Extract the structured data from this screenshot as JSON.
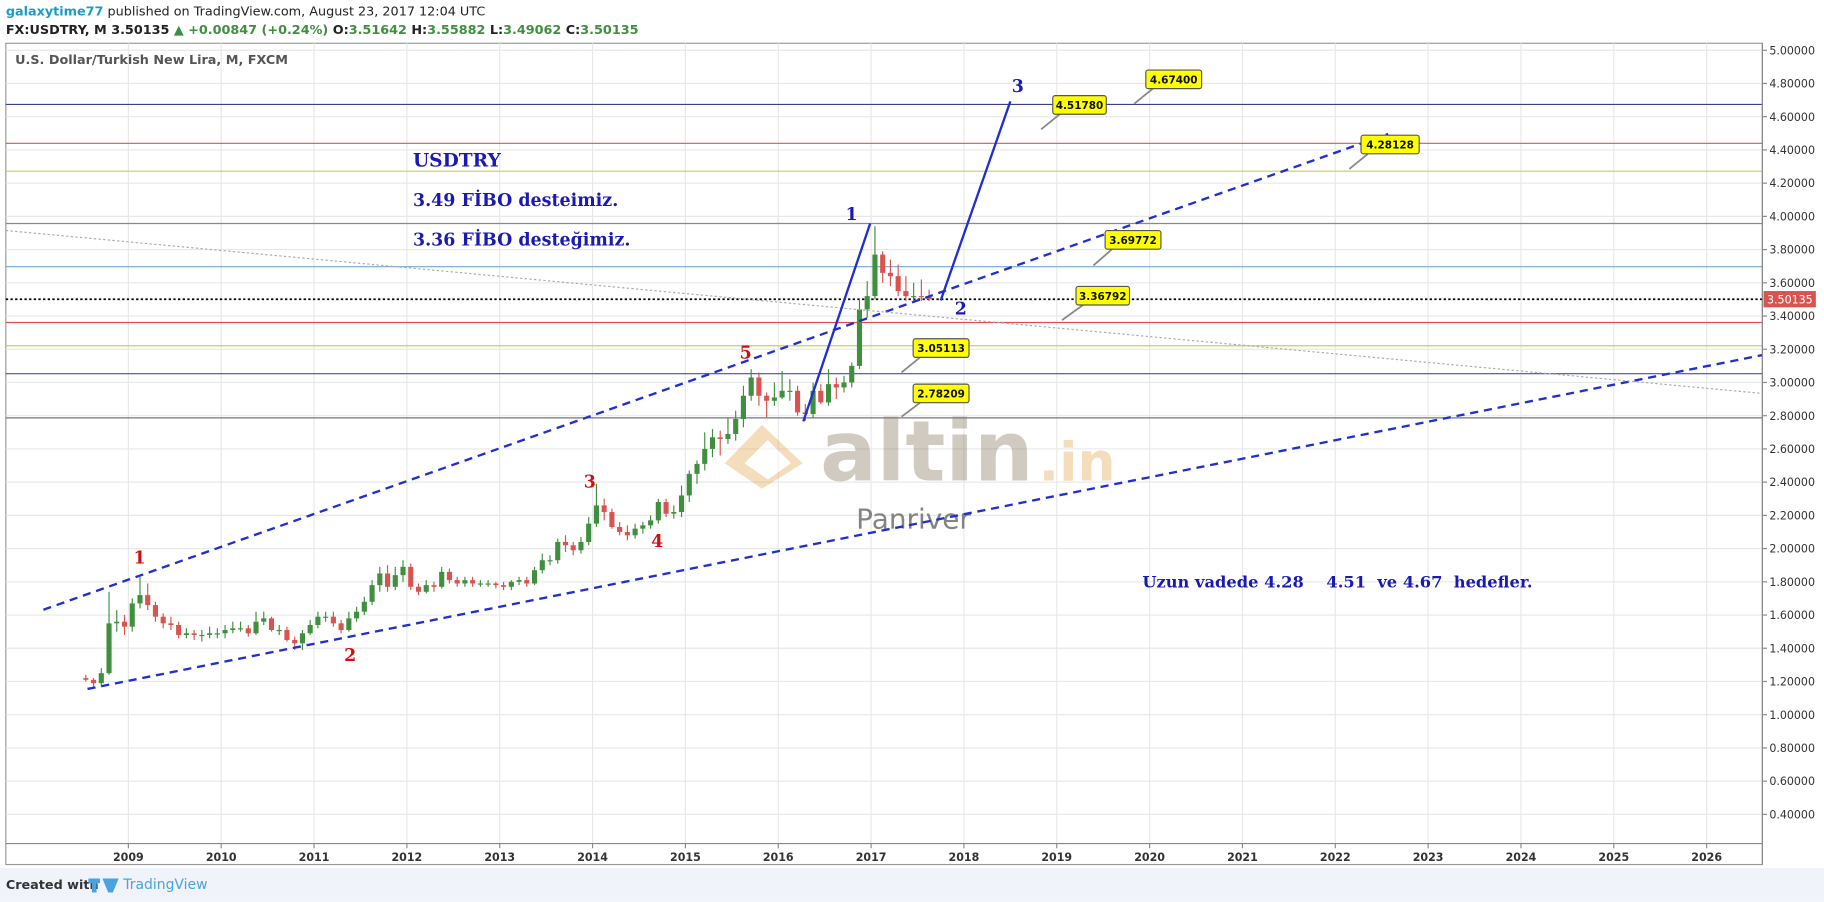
{
  "header": {
    "user": "galaxytime77",
    "published": " published on TradingView.com, August 23, 2017 12:04 UTC",
    "symbol": "FX:USDTRY, M",
    "price": "3.50135",
    "change": "▲ +0.00847 (+0.24%)",
    "ohlc": [
      {
        "label": "O:",
        "value": "3.51642"
      },
      {
        "label": "H:",
        "value": "3.55882"
      },
      {
        "label": "L:",
        "value": "3.49062"
      },
      {
        "label": "C:",
        "value": "3.50135"
      }
    ]
  },
  "footer": {
    "created": "Created with",
    "brand": "TradingView"
  },
  "chart_data": {
    "type": "candlestick",
    "title": "U.S. Dollar/Turkish New Lira, M, FXCM",
    "x": [
      "2008-07",
      "2008-08",
      "2008-09",
      "2008-10",
      "2008-11",
      "2008-12",
      "2009-01",
      "2009-02",
      "2009-03",
      "2009-04",
      "2009-05",
      "2009-06",
      "2009-07",
      "2009-08",
      "2009-09",
      "2009-10",
      "2009-11",
      "2009-12",
      "2010-01",
      "2010-02",
      "2010-03",
      "2010-04",
      "2010-05",
      "2010-06",
      "2010-07",
      "2010-08",
      "2010-09",
      "2010-10",
      "2010-11",
      "2010-12",
      "2011-01",
      "2011-02",
      "2011-03",
      "2011-04",
      "2011-05",
      "2011-06",
      "2011-07",
      "2011-08",
      "2011-09",
      "2011-10",
      "2011-11",
      "2011-12",
      "2012-01",
      "2012-02",
      "2012-03",
      "2012-04",
      "2012-05",
      "2012-06",
      "2012-07",
      "2012-08",
      "2012-09",
      "2012-10",
      "2012-11",
      "2012-12",
      "2013-01",
      "2013-02",
      "2013-03",
      "2013-04",
      "2013-05",
      "2013-06",
      "2013-07",
      "2013-08",
      "2013-09",
      "2013-10",
      "2013-11",
      "2013-12",
      "2014-01",
      "2014-02",
      "2014-03",
      "2014-04",
      "2014-05",
      "2014-06",
      "2014-07",
      "2014-08",
      "2014-09",
      "2014-10",
      "2014-11",
      "2014-12",
      "2015-01",
      "2015-02",
      "2015-03",
      "2015-04",
      "2015-05",
      "2015-06",
      "2015-07",
      "2015-08",
      "2015-09",
      "2015-10",
      "2015-11",
      "2015-12",
      "2016-01",
      "2016-02",
      "2016-03",
      "2016-04",
      "2016-05",
      "2016-06",
      "2016-07",
      "2016-08",
      "2016-09",
      "2016-10",
      "2016-11",
      "2016-12",
      "2017-01",
      "2017-02",
      "2017-03",
      "2017-04",
      "2017-05",
      "2017-06",
      "2017-07",
      "2017-08"
    ],
    "open": [
      1.22,
      1.21,
      1.19,
      1.25,
      1.55,
      1.56,
      1.53,
      1.67,
      1.72,
      1.66,
      1.59,
      1.55,
      1.54,
      1.48,
      1.49,
      1.48,
      1.48,
      1.49,
      1.49,
      1.51,
      1.52,
      1.52,
      1.49,
      1.56,
      1.58,
      1.51,
      1.51,
      1.45,
      1.43,
      1.49,
      1.54,
      1.59,
      1.59,
      1.55,
      1.51,
      1.58,
      1.62,
      1.68,
      1.78,
      1.85,
      1.77,
      1.84,
      1.89,
      1.77,
      1.74,
      1.78,
      1.77,
      1.86,
      1.81,
      1.79,
      1.81,
      1.79,
      1.79,
      1.79,
      1.78,
      1.77,
      1.8,
      1.81,
      1.79,
      1.87,
      1.93,
      1.93,
      2.04,
      2.02,
      1.99,
      2.04,
      2.15,
      2.26,
      2.22,
      2.13,
      2.1,
      2.08,
      2.12,
      2.14,
      2.17,
      2.28,
      2.21,
      2.22,
      2.32,
      2.45,
      2.51,
      2.6,
      2.67,
      2.66,
      2.69,
      2.78,
      2.92,
      3.03,
      2.92,
      2.89,
      2.91,
      2.95,
      2.95,
      2.82,
      2.81,
      2.95,
      2.88,
      2.99,
      2.97,
      3.0,
      3.1,
      3.44,
      3.52,
      3.77,
      3.66,
      3.64,
      3.55,
      3.52,
      3.52,
      3.51642
    ],
    "high": [
      1.24,
      1.22,
      1.28,
      1.74,
      1.63,
      1.6,
      1.7,
      1.83,
      1.79,
      1.68,
      1.61,
      1.59,
      1.56,
      1.52,
      1.51,
      1.51,
      1.53,
      1.52,
      1.54,
      1.56,
      1.56,
      1.54,
      1.62,
      1.62,
      1.59,
      1.54,
      1.53,
      1.47,
      1.51,
      1.57,
      1.62,
      1.62,
      1.62,
      1.57,
      1.62,
      1.65,
      1.71,
      1.81,
      1.89,
      1.9,
      1.89,
      1.93,
      1.91,
      1.79,
      1.81,
      1.8,
      1.89,
      1.88,
      1.83,
      1.83,
      1.83,
      1.81,
      1.81,
      1.8,
      1.8,
      1.81,
      1.83,
      1.83,
      1.89,
      1.97,
      1.96,
      2.06,
      2.08,
      2.04,
      2.07,
      2.19,
      2.39,
      2.3,
      2.24,
      2.16,
      2.14,
      2.15,
      2.16,
      2.2,
      2.3,
      2.3,
      2.26,
      2.38,
      2.47,
      2.53,
      2.7,
      2.72,
      2.71,
      2.79,
      2.83,
      2.98,
      3.08,
      3.06,
      2.94,
      3.0,
      3.07,
      3.02,
      2.98,
      2.87,
      3.0,
      2.99,
      3.08,
      3.03,
      3.04,
      3.12,
      3.5,
      3.61,
      3.94,
      3.79,
      3.74,
      3.71,
      3.64,
      3.6,
      3.62,
      3.55882
    ],
    "low": [
      1.2,
      1.16,
      1.17,
      1.24,
      1.5,
      1.48,
      1.5,
      1.64,
      1.63,
      1.56,
      1.52,
      1.51,
      1.46,
      1.46,
      1.45,
      1.44,
      1.46,
      1.46,
      1.46,
      1.49,
      1.5,
      1.47,
      1.48,
      1.54,
      1.5,
      1.48,
      1.44,
      1.39,
      1.39,
      1.48,
      1.52,
      1.56,
      1.53,
      1.49,
      1.5,
      1.56,
      1.6,
      1.66,
      1.74,
      1.74,
      1.75,
      1.8,
      1.75,
      1.72,
      1.73,
      1.74,
      1.76,
      1.79,
      1.77,
      1.77,
      1.77,
      1.77,
      1.77,
      1.76,
      1.75,
      1.75,
      1.78,
      1.77,
      1.78,
      1.85,
      1.9,
      1.91,
      1.98,
      1.96,
      1.97,
      2.02,
      2.13,
      2.17,
      2.12,
      2.08,
      2.05,
      2.06,
      2.09,
      2.12,
      2.15,
      2.19,
      2.18,
      2.19,
      2.28,
      2.39,
      2.47,
      2.55,
      2.56,
      2.63,
      2.65,
      2.73,
      2.89,
      2.86,
      2.79,
      2.86,
      2.9,
      2.89,
      2.8,
      2.77,
      2.79,
      2.87,
      2.86,
      2.9,
      2.94,
      2.97,
      3.08,
      3.39,
      3.5,
      3.6,
      3.58,
      3.52,
      3.49,
      3.48,
      3.49,
      3.49062
    ],
    "close": [
      1.21,
      1.19,
      1.25,
      1.55,
      1.56,
      1.53,
      1.67,
      1.72,
      1.66,
      1.59,
      1.55,
      1.54,
      1.48,
      1.49,
      1.48,
      1.48,
      1.49,
      1.49,
      1.51,
      1.52,
      1.52,
      1.49,
      1.56,
      1.58,
      1.51,
      1.51,
      1.45,
      1.43,
      1.49,
      1.54,
      1.59,
      1.59,
      1.55,
      1.51,
      1.58,
      1.62,
      1.68,
      1.78,
      1.85,
      1.77,
      1.84,
      1.89,
      1.77,
      1.74,
      1.78,
      1.77,
      1.86,
      1.81,
      1.79,
      1.81,
      1.79,
      1.79,
      1.79,
      1.78,
      1.77,
      1.8,
      1.81,
      1.79,
      1.87,
      1.93,
      1.93,
      2.04,
      2.02,
      1.99,
      2.04,
      2.15,
      2.26,
      2.22,
      2.13,
      2.1,
      2.08,
      2.12,
      2.14,
      2.17,
      2.28,
      2.21,
      2.22,
      2.32,
      2.45,
      2.51,
      2.6,
      2.67,
      2.66,
      2.69,
      2.78,
      2.92,
      3.03,
      2.92,
      2.89,
      2.91,
      2.95,
      2.95,
      2.82,
      2.81,
      2.95,
      2.88,
      2.99,
      2.97,
      3.0,
      3.1,
      3.44,
      3.52,
      3.77,
      3.66,
      3.64,
      3.55,
      3.52,
      3.52,
      3.51642,
      3.50135
    ],
    "up_color": "#3f8f3f",
    "down_color": "#d9534f",
    "xlim": [
      2007.68,
      2026.6
    ],
    "xticks": [
      2009,
      2010,
      2011,
      2012,
      2013,
      2014,
      2015,
      2016,
      2017,
      2018,
      2019,
      2020,
      2021,
      2022,
      2023,
      2024,
      2025,
      2026
    ],
    "ylim": [
      0.224,
      5.042
    ],
    "yticks": [
      {
        "value": 0.4,
        "label": "0.40000"
      },
      {
        "value": 0.6,
        "label": "0.60000"
      },
      {
        "value": 0.8,
        "label": "0.80000"
      },
      {
        "value": 1,
        "label": "1.00000"
      },
      {
        "value": 1.2,
        "label": "1.20000"
      },
      {
        "value": 1.4,
        "label": "1.40000"
      },
      {
        "value": 1.6,
        "label": "1.60000"
      },
      {
        "value": 1.8,
        "label": "1.80000"
      },
      {
        "value": 2,
        "label": "2.00000"
      },
      {
        "value": 2.2,
        "label": "2.20000"
      },
      {
        "value": 2.4,
        "label": "2.40000"
      },
      {
        "value": 2.6,
        "label": "2.60000"
      },
      {
        "value": 2.8,
        "label": "2.80000"
      },
      {
        "value": 3,
        "label": "3.00000"
      },
      {
        "value": 3.2,
        "label": "3.20000"
      },
      {
        "value": 3.4,
        "label": "3.40000"
      },
      {
        "value": 3.6,
        "label": "3.60000"
      },
      {
        "value": 3.8,
        "label": "3.80000"
      },
      {
        "value": 4,
        "label": "4.00000"
      },
      {
        "value": 4.2,
        "label": "4.20000"
      },
      {
        "value": 4.4,
        "label": "4.40000"
      },
      {
        "value": 4.6,
        "label": "4.60000"
      },
      {
        "value": 4.8,
        "label": "4.80000"
      },
      {
        "value": 5,
        "label": "5.00000"
      }
    ],
    "grid": true,
    "last_price_label": "3.50135",
    "levels": [
      {
        "value": 4.674,
        "color": "#3b3f8c",
        "dash": "solid"
      },
      {
        "value": 4.44,
        "color": "#e05050",
        "dash": "solid"
      },
      {
        "value": 4.272,
        "color": "#c8d050",
        "dash": "solid"
      },
      {
        "value": 3.957,
        "color": "#888888",
        "dash": "solid"
      },
      {
        "value": 3.697,
        "color": "#6fa8dc",
        "dash": "solid"
      },
      {
        "value": 3.50135,
        "color": "#000000",
        "dash": "dotted"
      },
      {
        "value": 3.361,
        "color": "#e05050",
        "dash": "solid"
      },
      {
        "value": 3.221,
        "color": "#c8d050",
        "dash": "solid"
      },
      {
        "value": 3.053,
        "color": "#3a4fc0",
        "dash": "solid"
      },
      {
        "value": 2.787,
        "color": "#777777",
        "dash": "solid"
      }
    ],
    "trendlines": [
      {
        "points": [
          [
            2008.085,
            1.632
          ],
          [
            2022.57,
            4.496
          ]
        ],
        "color": "#1f2fd0",
        "dash": "dashed"
      },
      {
        "points": [
          [
            2008.56,
            1.155
          ],
          [
            2026.6,
            3.165
          ]
        ],
        "color": "#1f2fd0",
        "dash": "dashed"
      },
      {
        "points": [
          [
            2007.68,
            3.915
          ],
          [
            2026.6,
            2.934
          ]
        ],
        "color": "#aaaaaa",
        "dash": "dotted"
      },
      {
        "points": [
          [
            2016.27,
            2.766
          ],
          [
            2016.99,
            3.957
          ]
        ],
        "color": "#1f2fd0",
        "dash": "solid"
      },
      {
        "points": [
          [
            2017.75,
            3.494
          ],
          [
            2018.5,
            4.692
          ]
        ],
        "color": "#1f2fd0",
        "dash": "solid"
      }
    ],
    "callouts": [
      "4.67400",
      "4.51780",
      "4.28128",
      "3.69772",
      "3.36792",
      "3.05113",
      "2.78209"
    ],
    "wave_labels": [
      {
        "text": "1",
        "color": "#d01010"
      },
      {
        "text": "2",
        "color": "#d01010"
      },
      {
        "text": "3",
        "color": "#d01010"
      },
      {
        "text": "4",
        "color": "#d01010"
      },
      {
        "text": "5",
        "color": "#d01010"
      },
      {
        "text": "1",
        "color": "#1a1ab0"
      },
      {
        "text": "2",
        "color": "#1a1ab0"
      },
      {
        "text": "3",
        "color": "#1a1ab0"
      }
    ],
    "annotations": [
      "USDTRY",
      "3.49 FİBO desteimiz.",
      "3.36 FİBO desteğimiz.",
      "Uzun vadede 4.28    4.51  ve 4.67  hedefler."
    ],
    "watermark": {
      "brand": "altin",
      ".in": ".in",
      "sub": "Panriver"
    }
  }
}
